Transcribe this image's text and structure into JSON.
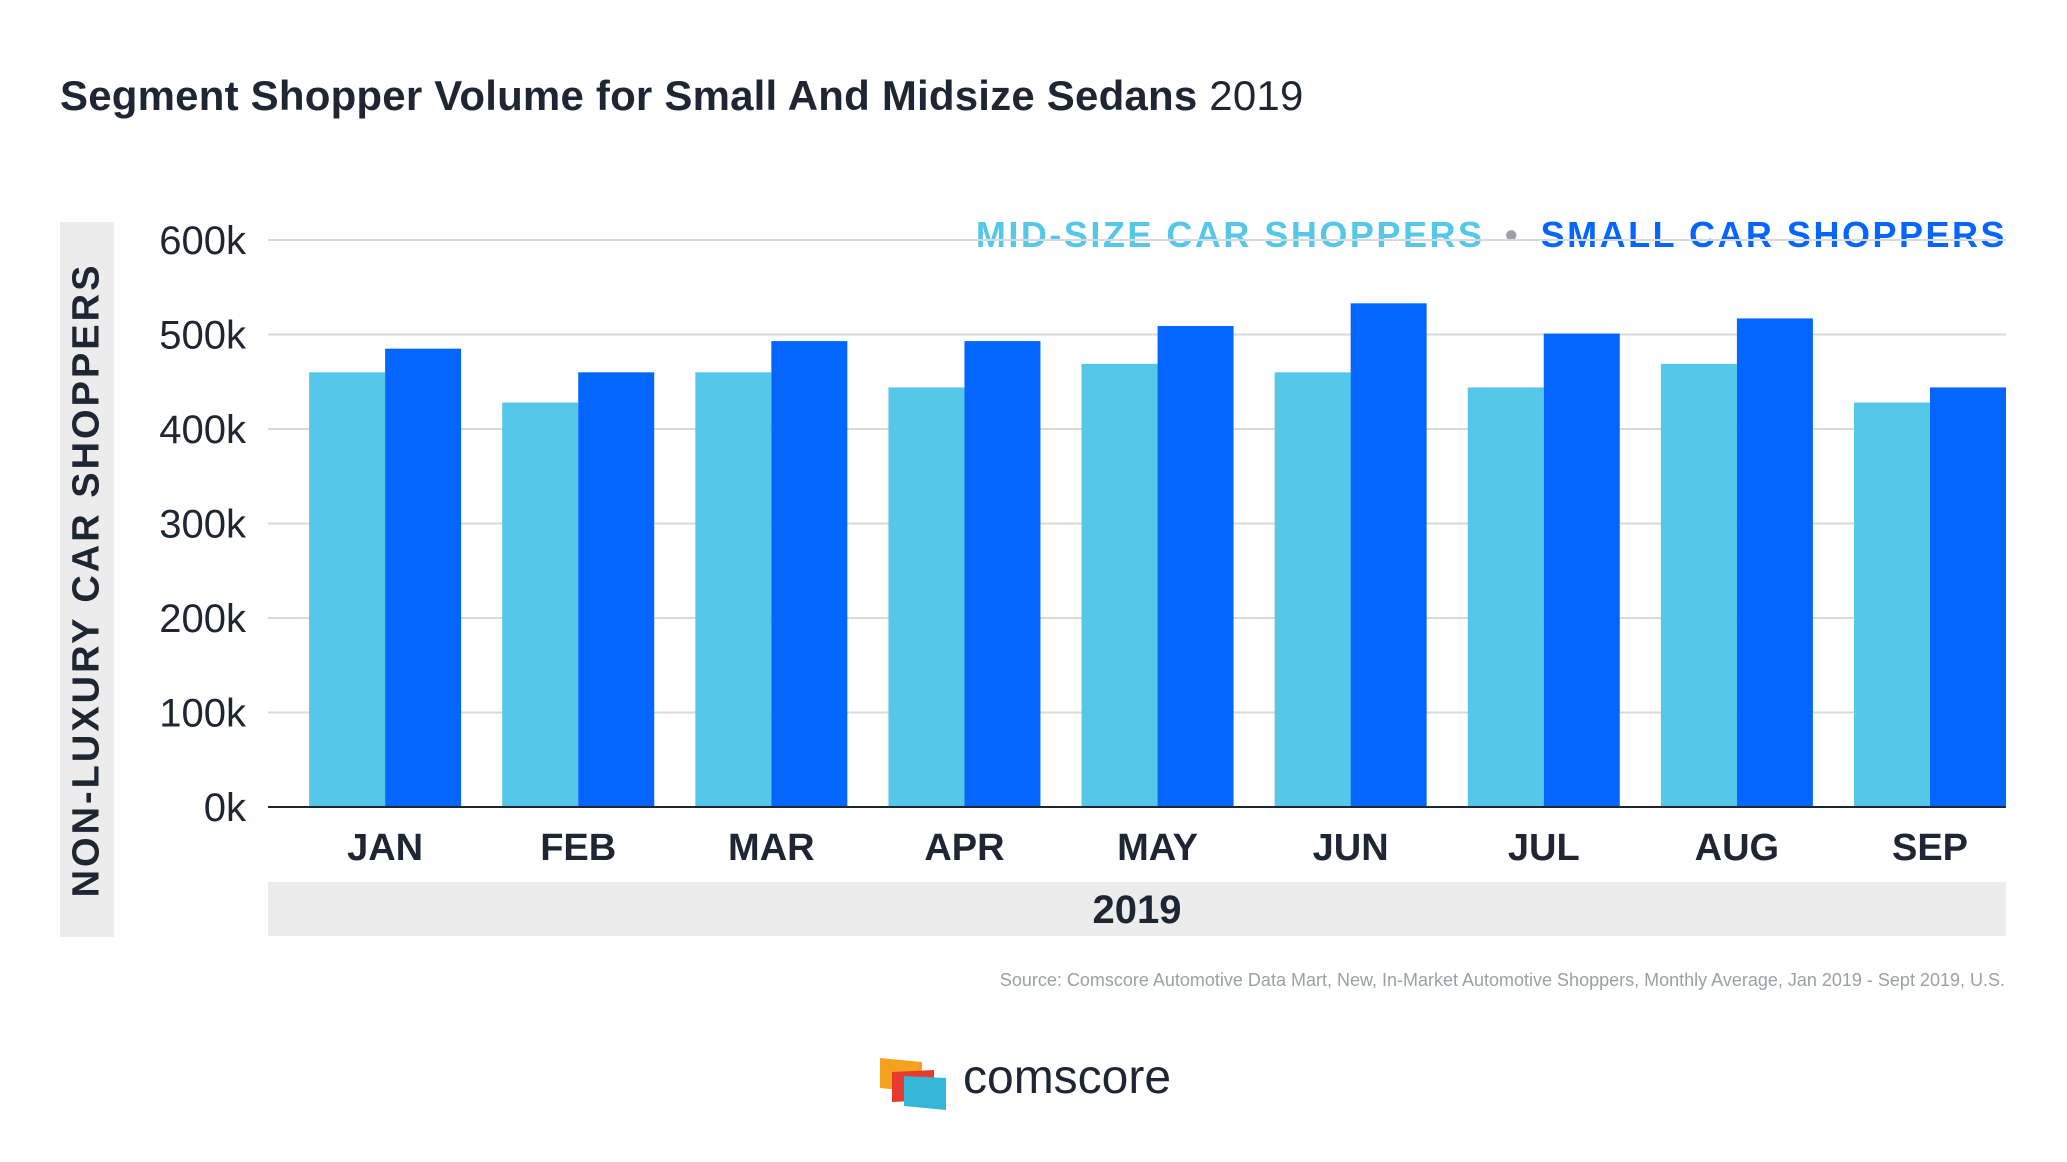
{
  "header": {
    "title_bold": "Segment Shopper Volume for Small And Midsize Sedans",
    "title_light": "2019"
  },
  "legend": {
    "mid_label": "MID-SIZE CAR SHOPPERS",
    "separator": "•",
    "small_label": "SMALL CAR SHOPPERS"
  },
  "colors": {
    "mid": "#55c7e8",
    "small": "#0466ff",
    "grid": "#d9d9d9",
    "axis": "#1f2633"
  },
  "year_label": "2019",
  "source": "Source: Comscore Automotive Data Mart, New, In-Market Automotive Shoppers, Monthly Average, Jan 2019 - Sept 2019, U.S.",
  "brand": {
    "name": "comscore",
    "icon": "comscore-logo-icon"
  },
  "chart_data": {
    "type": "bar",
    "title": "Segment Shopper Volume for Small And Midsize Sedans 2019",
    "xlabel": "2019",
    "ylabel": "NON-LUXURY CAR SHOPPERS",
    "categories": [
      "JAN",
      "FEB",
      "MAR",
      "APR",
      "MAY",
      "JUN",
      "JUL",
      "AUG",
      "SEP"
    ],
    "series": [
      {
        "name": "MID-SIZE CAR SHOPPERS",
        "values": [
          460,
          428,
          460,
          444,
          469,
          460,
          444,
          469,
          428
        ]
      },
      {
        "name": "SMALL CAR SHOPPERS",
        "values": [
          485,
          460,
          493,
          493,
          509,
          533,
          501,
          517,
          444
        ]
      }
    ],
    "ylim": [
      0,
      600
    ],
    "yticks": [
      0,
      100,
      200,
      300,
      400,
      500,
      600
    ],
    "ytick_labels": [
      "0k",
      "100k",
      "200k",
      "300k",
      "400k",
      "500k",
      "600k"
    ],
    "grid": true,
    "legend_position": "top-right"
  }
}
